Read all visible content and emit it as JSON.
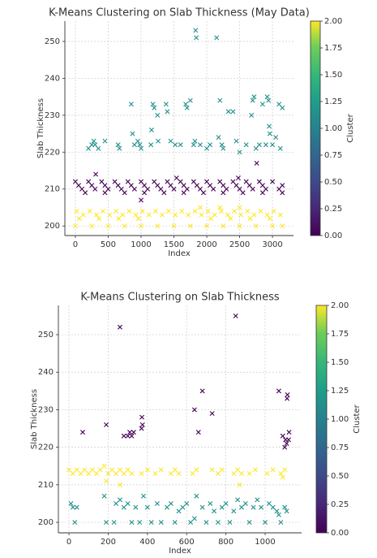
{
  "chart_data": [
    {
      "type": "scatter",
      "title": "K-Means Clustering on Slab Thickness (May Data)",
      "xlabel": "Index",
      "ylabel": "Slab Thickness",
      "xlim": [
        -160,
        3320
      ],
      "ylim": [
        197.4,
        255.5
      ],
      "xticks": [
        0,
        500,
        1000,
        1500,
        2000,
        2500,
        3000
      ],
      "yticks": [
        200,
        210,
        220,
        230,
        240,
        250
      ],
      "grid": true,
      "marker": "x",
      "colorbar": {
        "label": "Cluster",
        "lim": [
          0,
          2
        ],
        "ticks": [
          {
            "value": 0,
            "label": "0.00"
          },
          {
            "value": 0.25,
            "label": "0.25"
          },
          {
            "value": 0.5,
            "label": "0.50"
          },
          {
            "value": 0.75,
            "label": "0.75"
          },
          {
            "value": 1,
            "label": "1.00"
          },
          {
            "value": 1.25,
            "label": "1.25"
          },
          {
            "value": 1.5,
            "label": "1.50"
          },
          {
            "value": 1.75,
            "label": "1.75"
          },
          {
            "value": 2,
            "label": "2.00"
          }
        ]
      },
      "series": [
        {
          "color": "#440154",
          "x": [
            0,
            200,
            400,
            600,
            800,
            1000,
            1200,
            1400,
            1600,
            1800,
            2000,
            2200,
            2400,
            2600,
            2800,
            3000,
            50,
            250,
            450,
            650,
            850,
            1050,
            1250,
            1450,
            1650,
            1850,
            2050,
            2250,
            2450,
            2650,
            2850,
            3150,
            100,
            300,
            500,
            700,
            900,
            1100,
            1300,
            1500,
            1700,
            1900,
            2100,
            2300,
            2500,
            2700,
            2900,
            3100,
            150,
            450,
            750,
            1050,
            1350,
            1650,
            1950,
            2250,
            2550,
            2850,
            3150,
            310,
            1540,
            1000,
            2760,
            2480
          ],
          "values": [
            212,
            212,
            212,
            212,
            212,
            212,
            212,
            212,
            212,
            212,
            212,
            212,
            212,
            212,
            212,
            212,
            211,
            211,
            211,
            211,
            211,
            211,
            211,
            211,
            211,
            211,
            211,
            211,
            211,
            211,
            211,
            211,
            210,
            210,
            210,
            210,
            210,
            210,
            210,
            210,
            210,
            210,
            210,
            210,
            210,
            210,
            210,
            210,
            209,
            209,
            209,
            209,
            209,
            209,
            209,
            209,
            209,
            209,
            209,
            214,
            213,
            207,
            217,
            213
          ]
        },
        {
          "color": "#21918c",
          "x": [
            200,
            250,
            280,
            300,
            350,
            450,
            650,
            670,
            850,
            870,
            900,
            950,
            980,
            1000,
            1150,
            1160,
            1180,
            1200,
            1250,
            1260,
            1380,
            1400,
            1450,
            1520,
            1600,
            1680,
            1700,
            1750,
            1800,
            1820,
            1830,
            1840,
            1900,
            2000,
            2050,
            2150,
            2180,
            2200,
            2230,
            2250,
            2330,
            2400,
            2450,
            2500,
            2600,
            2680,
            2700,
            2720,
            2750,
            2800,
            2850,
            2900,
            2920,
            2940,
            2950,
            2960,
            3000,
            3050,
            3100,
            3120,
            3150
          ],
          "values": [
            221,
            222,
            223,
            222,
            221,
            223,
            222,
            221,
            233,
            225,
            222,
            223,
            222,
            221,
            222,
            226,
            233,
            232,
            230,
            223,
            233,
            231,
            223,
            222,
            222,
            233,
            232,
            234,
            222,
            223,
            253,
            251,
            222,
            221,
            222,
            251,
            224,
            234,
            222,
            221,
            231,
            231,
            223,
            220,
            222,
            230,
            234,
            235,
            221,
            222,
            233,
            222,
            235,
            234,
            227,
            225,
            222,
            224,
            233,
            221,
            232
          ]
        },
        {
          "color": "#fde725",
          "x": [
            20,
            220,
            420,
            620,
            820,
            1020,
            1220,
            1420,
            1620,
            1820,
            2020,
            2220,
            2420,
            2620,
            2820,
            3020,
            120,
            320,
            520,
            720,
            920,
            1120,
            1320,
            1520,
            1720,
            1920,
            2120,
            2320,
            2520,
            2720,
            2920,
            3120,
            60,
            360,
            660,
            960,
            2060,
            2360,
            2660,
            2960,
            0,
            250,
            500,
            750,
            1000,
            1250,
            1500,
            1750,
            2000,
            2250,
            2500,
            2750,
            3000,
            3150,
            1900,
            2200,
            2500
          ],
          "values": [
            204,
            204,
            204,
            204,
            204,
            204,
            204,
            204,
            204,
            204,
            204,
            204,
            204,
            204,
            204,
            204,
            203,
            203,
            203,
            203,
            203,
            203,
            203,
            203,
            203,
            203,
            203,
            203,
            203,
            203,
            203,
            203,
            202,
            202,
            202,
            202,
            202,
            202,
            202,
            202,
            200,
            200,
            200,
            200,
            200,
            200,
            200,
            200,
            200,
            200,
            200,
            200,
            200,
            200,
            205,
            205,
            205
          ]
        }
      ]
    },
    {
      "type": "scatter",
      "title": "K-Means Clustering on Slab Thickness",
      "xlabel": "Index",
      "ylabel": "Slab Thickness",
      "xlim": [
        -54,
        1186
      ],
      "ylim": [
        197.2,
        257.8
      ],
      "xticks": [
        0,
        200,
        400,
        600,
        800,
        1000
      ],
      "yticks": [
        200,
        210,
        220,
        230,
        240,
        250
      ],
      "grid": true,
      "marker": "x",
      "colorbar": {
        "label": "Cluster",
        "lim": [
          0,
          2
        ],
        "ticks": [
          {
            "value": 0,
            "label": "0.00"
          },
          {
            "value": 0.25,
            "label": "0.25"
          },
          {
            "value": 0.5,
            "label": "0.50"
          },
          {
            "value": 0.75,
            "label": "0.75"
          },
          {
            "value": 1,
            "label": "1.00"
          },
          {
            "value": 1.25,
            "label": "1.25"
          },
          {
            "value": 1.5,
            "label": "1.50"
          },
          {
            "value": 1.75,
            "label": "1.75"
          },
          {
            "value": 2,
            "label": "2.00"
          }
        ]
      },
      "series": [
        {
          "color": "#440154",
          "x": [
            70,
            190,
            260,
            280,
            300,
            310,
            320,
            330,
            370,
            375,
            372,
            640,
            660,
            680,
            730,
            850,
            1070,
            1090,
            1100,
            1110,
            1112,
            1114,
            1120,
            1122,
            1104
          ],
          "values": [
            224,
            226,
            252,
            223,
            223,
            224,
            223,
            224,
            225,
            226,
            228,
            230,
            224,
            235,
            229,
            255,
            235,
            223,
            220,
            221,
            233,
            234,
            222,
            224,
            222
          ]
        },
        {
          "color": "#21918c",
          "x": [
            10,
            20,
            30,
            40,
            180,
            190,
            230,
            260,
            280,
            300,
            320,
            340,
            360,
            380,
            400,
            420,
            450,
            470,
            500,
            520,
            540,
            560,
            580,
            600,
            620,
            640,
            650,
            680,
            700,
            720,
            740,
            760,
            780,
            800,
            820,
            840,
            860,
            880,
            900,
            920,
            940,
            960,
            980,
            1000,
            1020,
            1040,
            1060,
            1080,
            1100,
            1110,
            1070,
            240
          ],
          "values": [
            205,
            204,
            200,
            204,
            207,
            200,
            200,
            206,
            204,
            205,
            200,
            204,
            200,
            207,
            204,
            200,
            205,
            200,
            204,
            205,
            200,
            203,
            204,
            205,
            200,
            201,
            207,
            204,
            200,
            205,
            203,
            200,
            204,
            205,
            200,
            203,
            206,
            204,
            205,
            200,
            204,
            206,
            204,
            200,
            205,
            204,
            203,
            200,
            204,
            203,
            202,
            205
          ]
        },
        {
          "color": "#fde725",
          "x": [
            0,
            20,
            40,
            60,
            80,
            100,
            120,
            140,
            160,
            180,
            200,
            220,
            240,
            260,
            280,
            300,
            320,
            370,
            400,
            440,
            470,
            520,
            540,
            560,
            630,
            650,
            730,
            760,
            780,
            840,
            860,
            880,
            870,
            920,
            950,
            1010,
            1040,
            1080,
            1090,
            1100,
            260,
            190
          ],
          "values": [
            214,
            213,
            214,
            213,
            214,
            213,
            214,
            213,
            214,
            215,
            213,
            214,
            213,
            214,
            213,
            214,
            213,
            213,
            214,
            213,
            214,
            213,
            214,
            213,
            213,
            214,
            214,
            213,
            214,
            213,
            214,
            213,
            210,
            213,
            214,
            213,
            214,
            213,
            212,
            214,
            210,
            211
          ]
        }
      ]
    }
  ]
}
